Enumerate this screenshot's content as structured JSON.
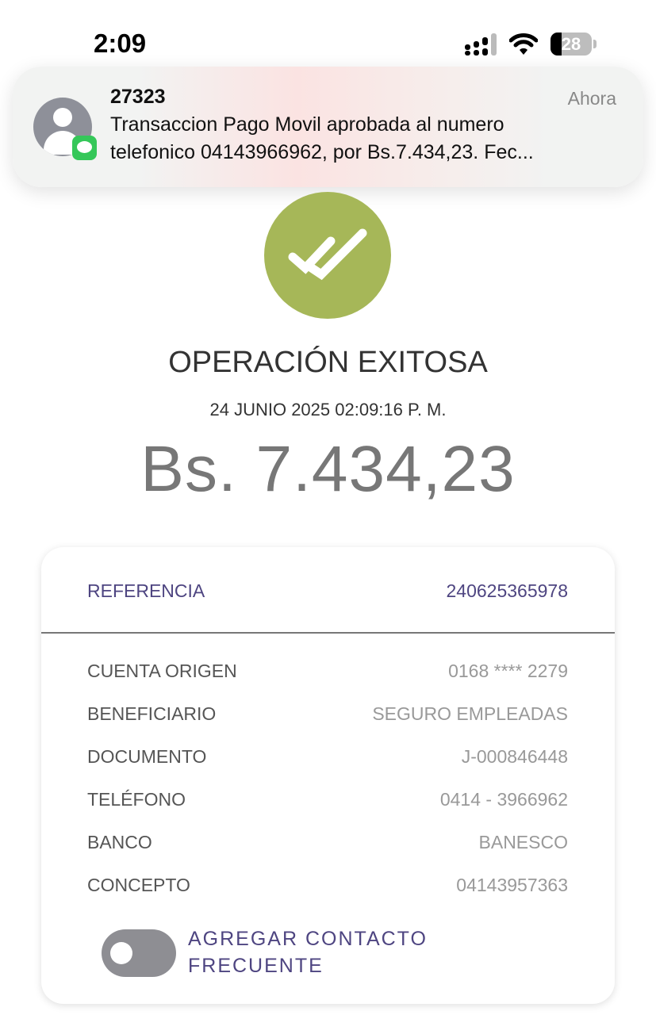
{
  "status_bar": {
    "time": "2:09",
    "battery": "28"
  },
  "notification": {
    "sender": "27323",
    "time": "Ahora",
    "line1": "Transaccion Pago Movil aprobada al numero",
    "line2": "telefonico 04143966962, por Bs.7.434,23. Fec..."
  },
  "result": {
    "title": "OPERACIÓN EXITOSA",
    "date": "24 JUNIO 2025 02:09:16 P. M.",
    "amount": "Bs. 7.434,23",
    "accent": "#a6b758"
  },
  "details": {
    "reference_label": "REFERENCIA",
    "reference_value": "240625365978",
    "rows": [
      {
        "label": "CUENTA ORIGEN",
        "value": "0168 **** 2279"
      },
      {
        "label": "BENEFICIARIO",
        "value": "SEGURO EMPLEADAS"
      },
      {
        "label": "DOCUMENTO",
        "value": "J-000846448"
      },
      {
        "label": "TELÉFONO",
        "value": "0414 - 3966962"
      },
      {
        "label": "BANCO",
        "value": "BANESCO"
      },
      {
        "label": "CONCEPTO",
        "value": "04143957363"
      }
    ],
    "toggle_line1": "AGREGAR CONTACTO",
    "toggle_line2": "FRECUENTE",
    "toggle_on": false
  }
}
